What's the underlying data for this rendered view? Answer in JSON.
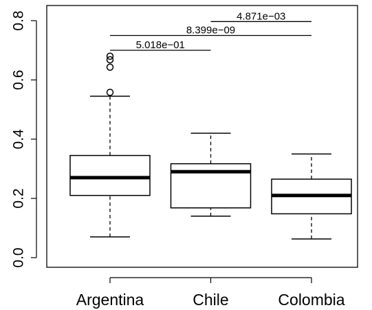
{
  "chart_data": {
    "type": "boxplot",
    "title": "",
    "xlabel": "",
    "ylabel": "",
    "ylim": [
      0.0,
      0.8
    ],
    "y_ticks": [
      0.0,
      0.2,
      0.4,
      0.6,
      0.8
    ],
    "y_tick_labels": [
      "0.0",
      "0.2",
      "0.4",
      "0.6",
      "0.8"
    ],
    "categories": [
      "Argentina",
      "Chile",
      "Colombia"
    ],
    "boxes": [
      {
        "category": "Argentina",
        "whisker_low": 0.07,
        "q1": 0.21,
        "median": 0.27,
        "q3": 0.345,
        "whisker_high": 0.545,
        "outliers": [
          0.558,
          0.643,
          0.668,
          0.68
        ]
      },
      {
        "category": "Chile",
        "whisker_low": 0.14,
        "q1": 0.168,
        "median": 0.29,
        "q3": 0.317,
        "whisker_high": 0.42,
        "outliers": []
      },
      {
        "category": "Colombia",
        "whisker_low": 0.063,
        "q1": 0.148,
        "median": 0.21,
        "q3": 0.265,
        "whisker_high": 0.35,
        "outliers": []
      }
    ],
    "comparisons": [
      {
        "from": "Argentina",
        "to": "Chile",
        "y": 0.7,
        "label": "5.018e−01"
      },
      {
        "from": "Argentina",
        "to": "Colombia",
        "y": 0.75,
        "label": "8.399e−09"
      },
      {
        "from": "Chile",
        "to": "Colombia",
        "y": 0.797,
        "label": "4.871e−03"
      }
    ],
    "grid": false,
    "legend": "none"
  }
}
